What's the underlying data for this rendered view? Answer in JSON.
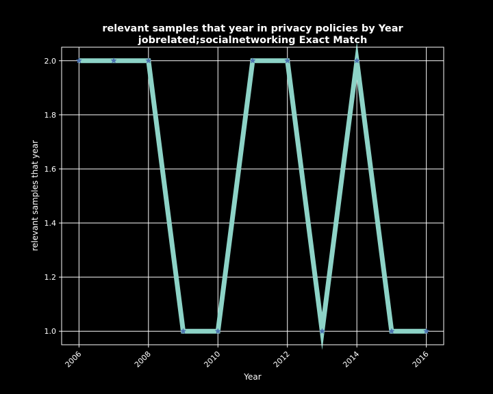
{
  "chart_data": {
    "type": "line",
    "title": "relevant samples that year in privacy policies by Year",
    "subtitle": "jobrelated;socialnetworking Exact Match",
    "xlabel": "Year",
    "ylabel": "relevant samples that year",
    "x": [
      2006,
      2007,
      2008,
      2009,
      2010,
      2011,
      2012,
      2013,
      2014,
      2015,
      2016
    ],
    "series": [
      {
        "values": [
          2,
          2,
          2,
          1,
          1,
          2,
          2,
          1,
          2,
          1,
          1
        ]
      }
    ],
    "xlim": [
      2005.5,
      2016.5
    ],
    "ylim": [
      0.95,
      2.05
    ],
    "xticks": [
      2006,
      2008,
      2010,
      2012,
      2014,
      2016
    ],
    "yticks": [
      1.0,
      1.2,
      1.4,
      1.6,
      1.8,
      2.0
    ],
    "ytick_labels": [
      "1.0",
      "1.2",
      "1.4",
      "1.6",
      "1.8",
      "2.0"
    ],
    "grid": true,
    "colors": {
      "background": "#000000",
      "line": "#8dd3c7",
      "marker": "#4c72b0",
      "grid": "#ffffff",
      "text": "#ffffff"
    }
  }
}
